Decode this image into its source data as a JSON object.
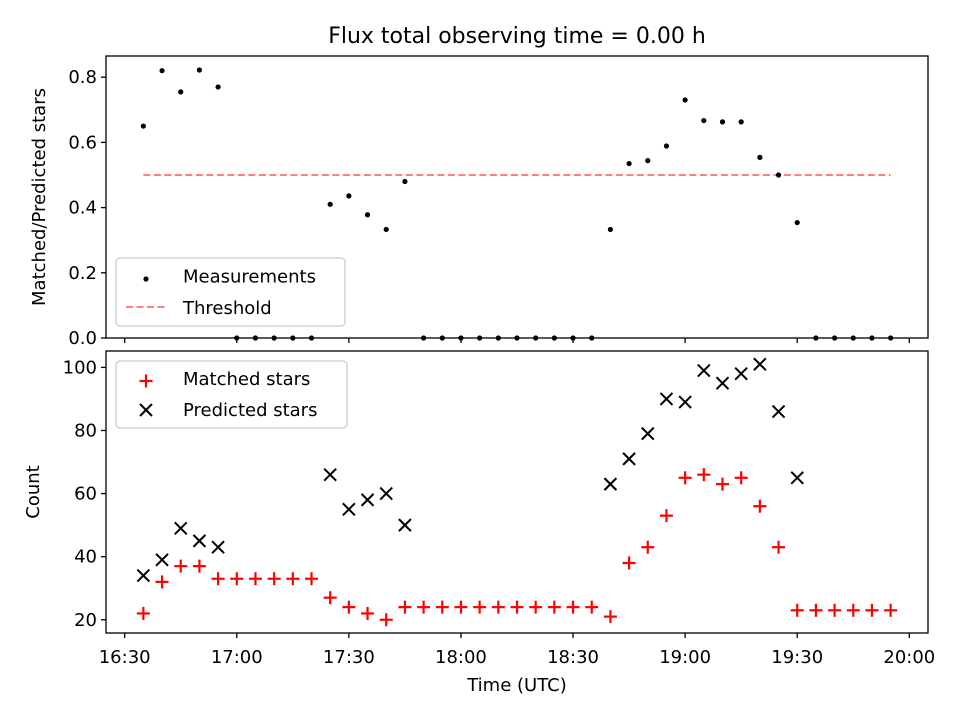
{
  "title": "Flux total observing time = 0.00 h",
  "colors": {
    "measurements": "#000000",
    "threshold": "#ff7f7f",
    "matched": "#ff0000",
    "predicted": "#000000",
    "axes": "#000000"
  },
  "chart_data": [
    {
      "type": "scatter",
      "title": "Flux total observing time = 0.00 h",
      "xlabel": "",
      "ylabel": "Matched/Predicted stars",
      "xlim": [
        "16:25",
        "20:05"
      ],
      "ylim": [
        0,
        0.865
      ],
      "yticks": [
        "0.0",
        "0.2",
        "0.4",
        "0.6",
        "0.8"
      ],
      "grid": false,
      "legend_position": "lower-left",
      "series": [
        {
          "name": "Measurements",
          "marker": "dot",
          "points": [
            [
              "16:35",
              0.65
            ],
            [
              "16:40",
              0.82
            ],
            [
              "16:45",
              0.755
            ],
            [
              "16:50",
              0.822
            ],
            [
              "16:55",
              0.77
            ],
            [
              "17:00",
              0.0
            ],
            [
              "17:05",
              0.0
            ],
            [
              "17:10",
              0.0
            ],
            [
              "17:15",
              0.0
            ],
            [
              "17:20",
              0.0
            ],
            [
              "17:25",
              0.41
            ],
            [
              "17:30",
              0.436
            ],
            [
              "17:35",
              0.378
            ],
            [
              "17:40",
              0.333
            ],
            [
              "17:45",
              0.48
            ],
            [
              "17:50",
              0.0
            ],
            [
              "17:55",
              0.0
            ],
            [
              "18:00",
              0.0
            ],
            [
              "18:05",
              0.0
            ],
            [
              "18:10",
              0.0
            ],
            [
              "18:15",
              0.0
            ],
            [
              "18:20",
              0.0
            ],
            [
              "18:25",
              0.0
            ],
            [
              "18:30",
              0.0
            ],
            [
              "18:35",
              0.0
            ],
            [
              "18:40",
              0.333
            ],
            [
              "18:45",
              0.535
            ],
            [
              "18:50",
              0.544
            ],
            [
              "18:55",
              0.589
            ],
            [
              "19:00",
              0.73
            ],
            [
              "19:05",
              0.667
            ],
            [
              "19:10",
              0.663
            ],
            [
              "19:15",
              0.663
            ],
            [
              "19:20",
              0.554
            ],
            [
              "19:25",
              0.5
            ],
            [
              "19:30",
              0.354
            ],
            [
              "19:35",
              0.0
            ],
            [
              "19:40",
              0.0
            ],
            [
              "19:45",
              0.0
            ],
            [
              "19:50",
              0.0
            ],
            [
              "19:55",
              0.0
            ]
          ]
        },
        {
          "name": "Threshold",
          "line": "dashed",
          "points": [
            [
              "16:35",
              0.5
            ],
            [
              "19:55",
              0.5
            ]
          ]
        }
      ]
    },
    {
      "type": "scatter",
      "xlabel": "Time (UTC)",
      "ylabel": "Count",
      "xlim": [
        "16:25",
        "20:05"
      ],
      "ylim": [
        15.8,
        105.2
      ],
      "xticks": [
        "16:30",
        "17:00",
        "17:30",
        "18:00",
        "18:30",
        "19:00",
        "19:30",
        "20:00"
      ],
      "yticks": [
        "20",
        "40",
        "60",
        "80",
        "100"
      ],
      "grid": false,
      "legend_position": "upper-left",
      "series": [
        {
          "name": "Matched stars",
          "marker": "plus",
          "points": [
            [
              "16:35",
              22
            ],
            [
              "16:40",
              32
            ],
            [
              "16:45",
              37
            ],
            [
              "16:50",
              37
            ],
            [
              "16:55",
              33
            ],
            [
              "17:00",
              33
            ],
            [
              "17:05",
              33
            ],
            [
              "17:10",
              33
            ],
            [
              "17:15",
              33
            ],
            [
              "17:20",
              33
            ],
            [
              "17:25",
              27
            ],
            [
              "17:30",
              24
            ],
            [
              "17:35",
              22
            ],
            [
              "17:40",
              20
            ],
            [
              "17:45",
              24
            ],
            [
              "17:50",
              24
            ],
            [
              "17:55",
              24
            ],
            [
              "18:00",
              24
            ],
            [
              "18:05",
              24
            ],
            [
              "18:10",
              24
            ],
            [
              "18:15",
              24
            ],
            [
              "18:20",
              24
            ],
            [
              "18:25",
              24
            ],
            [
              "18:30",
              24
            ],
            [
              "18:35",
              24
            ],
            [
              "18:40",
              21
            ],
            [
              "18:45",
              38
            ],
            [
              "18:50",
              43
            ],
            [
              "18:55",
              53
            ],
            [
              "19:00",
              65
            ],
            [
              "19:05",
              66
            ],
            [
              "19:10",
              63
            ],
            [
              "19:15",
              65
            ],
            [
              "19:20",
              56
            ],
            [
              "19:25",
              43
            ],
            [
              "19:30",
              23
            ],
            [
              "19:35",
              23
            ],
            [
              "19:40",
              23
            ],
            [
              "19:45",
              23
            ],
            [
              "19:50",
              23
            ],
            [
              "19:55",
              23
            ]
          ]
        },
        {
          "name": "Predicted stars",
          "marker": "x",
          "points": [
            [
              "16:35",
              34
            ],
            [
              "16:40",
              39
            ],
            [
              "16:45",
              49
            ],
            [
              "16:50",
              45
            ],
            [
              "16:55",
              43
            ],
            [
              "17:25",
              66
            ],
            [
              "17:30",
              55
            ],
            [
              "17:35",
              58
            ],
            [
              "17:40",
              60
            ],
            [
              "17:45",
              50
            ],
            [
              "18:40",
              63
            ],
            [
              "18:45",
              71
            ],
            [
              "18:50",
              79
            ],
            [
              "18:55",
              90
            ],
            [
              "19:00",
              89
            ],
            [
              "19:05",
              99
            ],
            [
              "19:10",
              95
            ],
            [
              "19:15",
              98
            ],
            [
              "19:20",
              101
            ],
            [
              "19:25",
              86
            ],
            [
              "19:30",
              65
            ]
          ]
        }
      ]
    }
  ]
}
